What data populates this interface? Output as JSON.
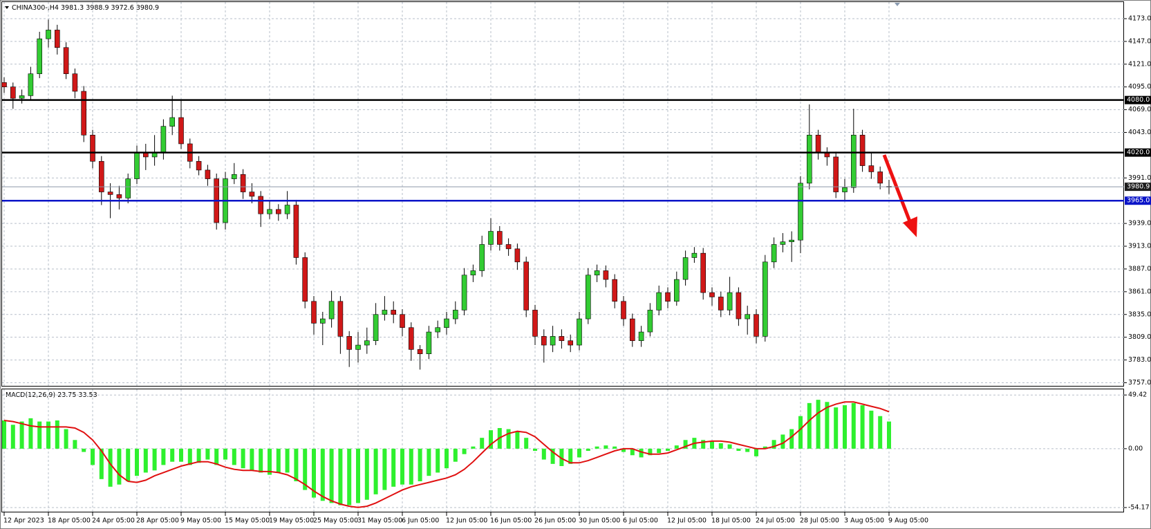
{
  "chart_data": [
    {
      "type": "candlestick",
      "symbol": "CHINA300-,H4",
      "categories": [
        "12 Apr 2023",
        null,
        null,
        null,
        null,
        "18 Apr 05:00",
        null,
        null,
        null,
        null,
        "24 Apr 05:00",
        null,
        null,
        null,
        null,
        "28 Apr 05:00",
        null,
        null,
        null,
        null,
        "9 May 05:00",
        null,
        null,
        null,
        null,
        "15 May 05:00",
        null,
        null,
        null,
        null,
        "19 May 05:00",
        null,
        null,
        null,
        null,
        "25 May 05:00",
        null,
        null,
        null,
        null,
        "31 May 05:00",
        null,
        null,
        null,
        null,
        "6 Jun 05:00",
        null,
        null,
        null,
        null,
        "12 Jun 05:00",
        null,
        null,
        null,
        null,
        "16 Jun 05:00",
        null,
        null,
        null,
        null,
        "26 Jun 05:00",
        null,
        null,
        null,
        null,
        "30 Jun 05:00",
        null,
        null,
        null,
        null,
        "6 Jul 05:00",
        null,
        null,
        null,
        null,
        "12 Jul 05:00",
        null,
        null,
        null,
        null,
        "18 Jul 05:00",
        null,
        null,
        null,
        null,
        "24 Jul 05:00",
        null,
        null,
        null,
        null,
        "28 Jul 05:00",
        null,
        null,
        null,
        null,
        "3 Aug 05:00",
        null,
        null,
        null,
        null,
        "9 Aug 05:00"
      ],
      "candles": [
        [
          4100,
          4106,
          4088,
          4095
        ],
        [
          4095,
          4100,
          4070,
          4082
        ],
        [
          4082,
          4092,
          4076,
          4085
        ],
        [
          4085,
          4118,
          4080,
          4110
        ],
        [
          4110,
          4158,
          4105,
          4150
        ],
        [
          4150,
          4172,
          4140,
          4160
        ],
        [
          4160,
          4166,
          4132,
          4140
        ],
        [
          4140,
          4146,
          4104,
          4110
        ],
        [
          4110,
          4116,
          4082,
          4090
        ],
        [
          4090,
          4096,
          4032,
          4040
        ],
        [
          4040,
          4046,
          4002,
          4010
        ],
        [
          4010,
          4016,
          3960,
          3975
        ],
        [
          3975,
          3985,
          3945,
          3972
        ],
        [
          3972,
          3982,
          3955,
          3968
        ],
        [
          3968,
          3996,
          3962,
          3990
        ],
        [
          3990,
          4028,
          3984,
          4020
        ],
        [
          4020,
          4030,
          4000,
          4015
        ],
        [
          4015,
          4040,
          4005,
          4020
        ],
        [
          4020,
          4058,
          4012,
          4050
        ],
        [
          4050,
          4085,
          4040,
          4060
        ],
        [
          4060,
          4080,
          4024,
          4030
        ],
        [
          4030,
          4036,
          4002,
          4010
        ],
        [
          4010,
          4016,
          3994,
          4000
        ],
        [
          4000,
          4006,
          3982,
          3990
        ],
        [
          3990,
          3996,
          3932,
          3940
        ],
        [
          3940,
          3998,
          3932,
          3990
        ],
        [
          3990,
          4008,
          3984,
          3995
        ],
        [
          3995,
          4001,
          3967,
          3975
        ],
        [
          3975,
          3985,
          3962,
          3970
        ],
        [
          3970,
          3976,
          3935,
          3950
        ],
        [
          3950,
          3965,
          3944,
          3955
        ],
        [
          3955,
          3961,
          3942,
          3950
        ],
        [
          3950,
          3976,
          3944,
          3960
        ],
        [
          3960,
          3966,
          3892,
          3900
        ],
        [
          3900,
          3906,
          3842,
          3850
        ],
        [
          3850,
          3856,
          3812,
          3825
        ],
        [
          3825,
          3838,
          3800,
          3830
        ],
        [
          3830,
          3862,
          3820,
          3850
        ],
        [
          3850,
          3856,
          3790,
          3810
        ],
        [
          3810,
          3816,
          3775,
          3795
        ],
        [
          3795,
          3815,
          3780,
          3800
        ],
        [
          3800,
          3820,
          3790,
          3805
        ],
        [
          3805,
          3848,
          3800,
          3835
        ],
        [
          3835,
          3856,
          3828,
          3840
        ],
        [
          3840,
          3850,
          3825,
          3835
        ],
        [
          3835,
          3841,
          3810,
          3820
        ],
        [
          3820,
          3826,
          3782,
          3795
        ],
        [
          3795,
          3800,
          3772,
          3790
        ],
        [
          3790,
          3822,
          3784,
          3815
        ],
        [
          3815,
          3828,
          3808,
          3820
        ],
        [
          3820,
          3838,
          3812,
          3830
        ],
        [
          3830,
          3850,
          3824,
          3840
        ],
        [
          3840,
          3888,
          3834,
          3880
        ],
        [
          3880,
          3892,
          3872,
          3885
        ],
        [
          3885,
          3925,
          3878,
          3915
        ],
        [
          3915,
          3945,
          3908,
          3930
        ],
        [
          3930,
          3936,
          3908,
          3915
        ],
        [
          3915,
          3922,
          3902,
          3910
        ],
        [
          3910,
          3916,
          3886,
          3895
        ],
        [
          3895,
          3901,
          3832,
          3840
        ],
        [
          3840,
          3846,
          3800,
          3810
        ],
        [
          3810,
          3818,
          3780,
          3800
        ],
        [
          3800,
          3822,
          3792,
          3810
        ],
        [
          3810,
          3818,
          3796,
          3805
        ],
        [
          3805,
          3812,
          3792,
          3800
        ],
        [
          3800,
          3838,
          3794,
          3830
        ],
        [
          3830,
          3888,
          3824,
          3880
        ],
        [
          3880,
          3892,
          3872,
          3885
        ],
        [
          3885,
          3891,
          3866,
          3875
        ],
        [
          3875,
          3881,
          3842,
          3850
        ],
        [
          3850,
          3856,
          3822,
          3830
        ],
        [
          3830,
          3836,
          3798,
          3805
        ],
        [
          3805,
          3822,
          3798,
          3815
        ],
        [
          3815,
          3848,
          3810,
          3840
        ],
        [
          3840,
          3868,
          3834,
          3860
        ],
        [
          3860,
          3866,
          3842,
          3850
        ],
        [
          3850,
          3884,
          3845,
          3875
        ],
        [
          3875,
          3908,
          3868,
          3900
        ],
        [
          3900,
          3912,
          3894,
          3905
        ],
        [
          3905,
          3911,
          3852,
          3860
        ],
        [
          3860,
          3866,
          3845,
          3855
        ],
        [
          3855,
          3861,
          3832,
          3840
        ],
        [
          3840,
          3878,
          3834,
          3860
        ],
        [
          3860,
          3866,
          3822,
          3830
        ],
        [
          3830,
          3845,
          3812,
          3835
        ],
        [
          3835,
          3841,
          3802,
          3810
        ],
        [
          3810,
          3903,
          3804,
          3895
        ],
        [
          3895,
          3923,
          3888,
          3915
        ],
        [
          3915,
          3928,
          3906,
          3918
        ],
        [
          3918,
          3930,
          3895,
          3920
        ],
        [
          3920,
          3993,
          3905,
          3985
        ],
        [
          3985,
          4075,
          3978,
          4040
        ],
        [
          4040,
          4046,
          4012,
          4020
        ],
        [
          4020,
          4026,
          4005,
          4015
        ],
        [
          4015,
          4021,
          3968,
          3975
        ],
        [
          3975,
          3990,
          3965,
          3980
        ],
        [
          3980,
          4070,
          3974,
          4040
        ],
        [
          4040,
          4046,
          3998,
          4005
        ],
        [
          4005,
          4020,
          3990,
          3998
        ],
        [
          3998,
          4004,
          3978,
          3985
        ],
        [
          3981.3,
          3988.9,
          3972.6,
          3980.9
        ]
      ],
      "up_color": "#33cc33",
      "down_color": "#d01818",
      "ylim": [
        3755,
        4188
      ],
      "yticks": [
        {
          "value": 4173,
          "label": "4173.0"
        },
        {
          "value": 4147,
          "label": "4147.0"
        },
        {
          "value": 4121,
          "label": "4121.0"
        },
        {
          "value": 4095,
          "label": "4095.0"
        },
        {
          "value": 4069,
          "label": "4069.0"
        },
        {
          "value": 4043,
          "label": "4043.0"
        },
        {
          "value": 3991,
          "label": "3991.0"
        },
        {
          "value": 3939,
          "label": "3939.0"
        },
        {
          "value": 3913,
          "label": "3913.0"
        },
        {
          "value": 3887,
          "label": "3887.0"
        },
        {
          "value": 3861,
          "label": "3861.0"
        },
        {
          "value": 3835,
          "label": "3835.0"
        },
        {
          "value": 3809,
          "label": "3809.0"
        },
        {
          "value": 3783,
          "label": "3783.0"
        },
        {
          "value": 3757,
          "label": "3757.0"
        }
      ],
      "grid": true,
      "levels": [
        {
          "value": 4080,
          "label": "4080.0",
          "color": "#000000"
        },
        {
          "value": 4020,
          "label": "4020.0",
          "color": "#000000"
        },
        {
          "value": 3965,
          "label": "3965.0",
          "color": "#0a14c8"
        }
      ]
    },
    {
      "type": "macd",
      "title": "MACD(12,26,9)",
      "current_values": [
        23.75,
        33.53
      ],
      "ylim": [
        -58,
        54
      ],
      "yticks": [
        49.42,
        {
          "value": 0,
          "label": "0.00"
        },
        -54.17
      ],
      "histogram": {
        "color": "#2ef02e",
        "values": [
          26,
          22,
          25,
          28,
          25,
          25,
          26,
          18,
          8,
          -3,
          -15,
          -28,
          -35,
          -33,
          -30,
          -25,
          -22,
          -20,
          -15,
          -12,
          -12,
          -15,
          -13,
          -10,
          -15,
          -10,
          -15,
          -18,
          -20,
          -22,
          -24,
          -22,
          -22,
          -30,
          -38,
          -45,
          -48,
          -50,
          -52,
          -52,
          -50,
          -47,
          -42,
          -38,
          -35,
          -33,
          -33,
          -30,
          -25,
          -22,
          -18,
          -12,
          -5,
          2,
          10,
          17,
          19,
          18,
          16,
          10,
          -2,
          -10,
          -14,
          -16,
          -14,
          -8,
          -2,
          2,
          3,
          2,
          -3,
          -6,
          -8,
          -6,
          -4,
          -2,
          3,
          8,
          10,
          8,
          7,
          5,
          4,
          -2,
          -3,
          -7,
          2,
          8,
          13,
          18,
          30,
          42,
          45,
          43,
          38,
          40,
          42,
          40,
          35,
          30,
          25
        ]
      },
      "signal": {
        "color": "#e01010",
        "values": [
          26,
          25,
          23,
          21,
          20,
          20,
          20,
          20,
          19,
          15,
          8,
          -2,
          -14,
          -24,
          -30,
          -31,
          -29,
          -25,
          -22,
          -19,
          -16,
          -14,
          -12,
          -12,
          -14,
          -17,
          -19,
          -20,
          -20,
          -21,
          -21,
          -22,
          -24,
          -28,
          -33,
          -39,
          -44,
          -48,
          -51,
          -53,
          -54,
          -53,
          -50,
          -46,
          -42,
          -38,
          -35,
          -33,
          -31,
          -29,
          -27,
          -24,
          -19,
          -12,
          -4,
          4,
          10,
          14,
          16,
          15,
          11,
          4,
          -3,
          -9,
          -13,
          -13,
          -11,
          -8,
          -5,
          -2,
          0,
          0,
          -3,
          -5,
          -5,
          -4,
          -1,
          2,
          5,
          6,
          7,
          7,
          6,
          4,
          2,
          0,
          0,
          2,
          5,
          11,
          18,
          26,
          33,
          38,
          41,
          43,
          43,
          41,
          39,
          37,
          34
        ]
      }
    }
  ]
}
